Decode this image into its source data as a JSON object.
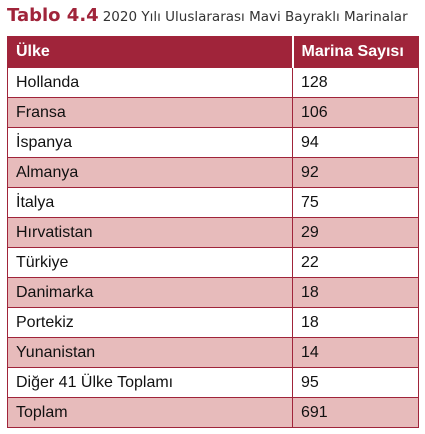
{
  "caption": {
    "label": "Tablo 4.4",
    "text": "2020 Yılı Uluslararası Mavi Bayraklı Marinalar"
  },
  "table": {
    "headers": [
      "Ülke",
      "Marina Sayısı"
    ],
    "rows": [
      [
        "Hollanda",
        "128"
      ],
      [
        "Fransa",
        "106"
      ],
      [
        "İspanya",
        "94"
      ],
      [
        "Almanya",
        "92"
      ],
      [
        "İtalya",
        "75"
      ],
      [
        "Hırvatistan",
        "29"
      ],
      [
        "Türkiye",
        "22"
      ],
      [
        "Danimarka",
        "18"
      ],
      [
        "Portekiz",
        "18"
      ],
      [
        "Yunanistan",
        "14"
      ],
      [
        "Diğer 41 Ülke Toplamı",
        "95"
      ],
      [
        "Toplam",
        "691"
      ]
    ]
  },
  "colors": {
    "header_bg": "#a0243a",
    "stripe_bg": "#e7bbbb",
    "border": "#a0243a"
  }
}
